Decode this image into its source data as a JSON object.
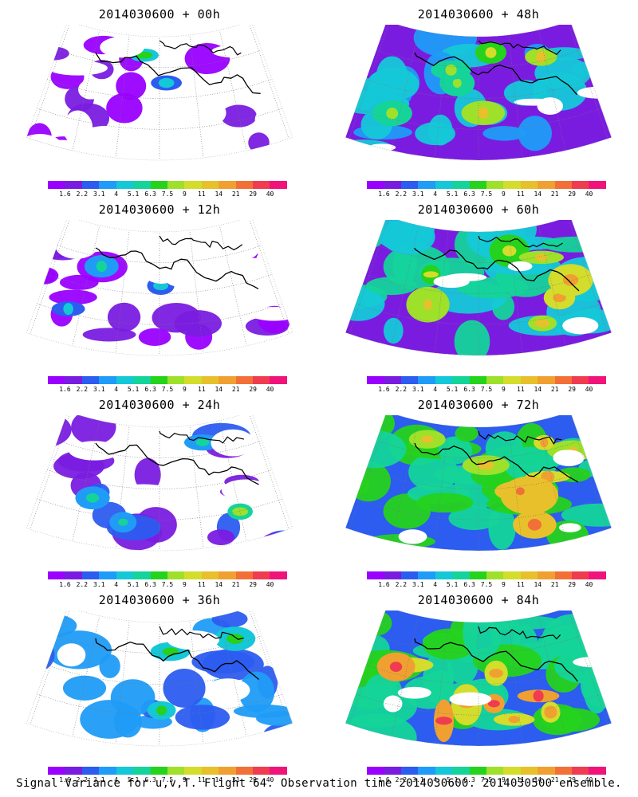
{
  "panels": [
    {
      "title": "2014030600 + 00h",
      "intensity": 0
    },
    {
      "title": "2014030600 + 48h",
      "intensity": 4
    },
    {
      "title": "2014030600 + 12h",
      "intensity": 1
    },
    {
      "title": "2014030600 + 60h",
      "intensity": 5
    },
    {
      "title": "2014030600 + 24h",
      "intensity": 2
    },
    {
      "title": "2014030600 + 72h",
      "intensity": 6
    },
    {
      "title": "2014030600 + 36h",
      "intensity": 3
    },
    {
      "title": "2014030600 + 84h",
      "intensity": 7
    }
  ],
  "colorbar": {
    "ticks": [
      "1.6",
      "2.2",
      "3.1",
      "4",
      "5.1",
      "6.3",
      "7.5",
      "9",
      "11",
      "14",
      "21",
      "29",
      "40"
    ],
    "colors": [
      "#9900ff",
      "#7a1ce0",
      "#2c5cf0",
      "#1f9cf7",
      "#15c8d8",
      "#14d49a",
      "#25d21c",
      "#9ee02a",
      "#d4dc2c",
      "#e8c02c",
      "#f0a030",
      "#f27038",
      "#f03c50",
      "#f0147a"
    ]
  },
  "caption": "Signal Variance for u,v,T. Flight 64. Observation time 2014030600. 2014030500 ensemble."
}
